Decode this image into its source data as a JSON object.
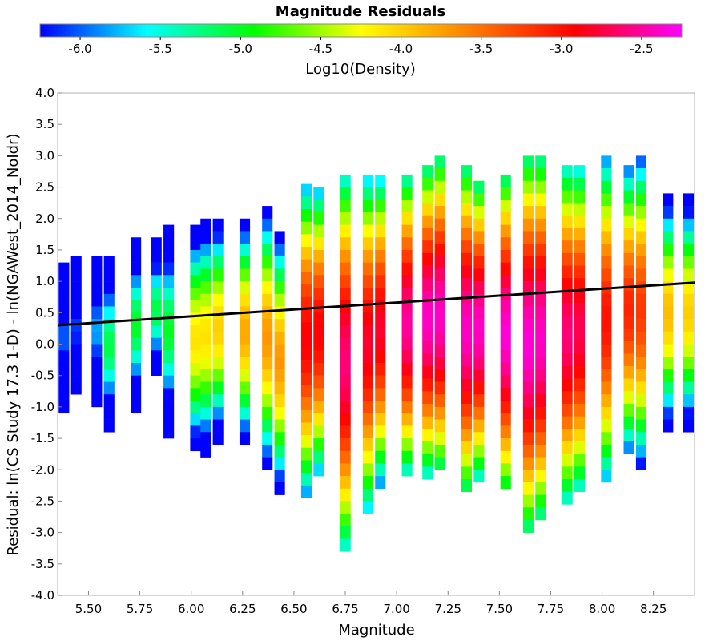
{
  "chart_data": {
    "type": "heatmap",
    "title": "Magnitude Residuals",
    "xlabel": "Magnitude",
    "ylabel": "Residual: ln(CS Study 17.3 1-D) - ln(NGAWest_2014_NoIdr)",
    "xlim": [
      5.35,
      8.45
    ],
    "ylim": [
      -4.0,
      4.0
    ],
    "x_ticks": [
      "5.50",
      "5.75",
      "6.00",
      "6.25",
      "6.50",
      "6.75",
      "7.00",
      "7.25",
      "7.50",
      "7.75",
      "8.00",
      "8.25"
    ],
    "y_ticks": [
      "-4.0",
      "-3.5",
      "-3.0",
      "-2.5",
      "-2.0",
      "-1.5",
      "-1.0",
      "-0.5",
      "0.0",
      "0.5",
      "1.0",
      "1.5",
      "2.0",
      "2.5",
      "3.0",
      "3.5",
      "4.0"
    ],
    "x_bin_width": 0.05,
    "y_bin_width": 0.2,
    "grid": false,
    "colorbar": {
      "label": "Log10(Density)",
      "range": [
        -6.25,
        -2.25
      ],
      "ticks": [
        "-6.0",
        "-5.5",
        "-5.0",
        "-4.5",
        "-4.0",
        "-3.5",
        "-3.0",
        "-2.5"
      ],
      "placement": "top",
      "colormap": [
        "#0000ff",
        "#00ffff",
        "#00ff00",
        "#ffff00",
        "#ff8000",
        "#ff0000",
        "#ff00ff"
      ]
    },
    "trend_line": {
      "x": [
        5.35,
        8.45
      ],
      "y": [
        0.3,
        0.98
      ],
      "color": "#000000"
    },
    "columns": [
      {
        "x": 5.38,
        "ymin": -1.1,
        "ymax": 1.3,
        "peak": -6.0
      },
      {
        "x": 5.44,
        "ymin": -0.9,
        "ymax": 1.4,
        "peak": -6.1
      },
      {
        "x": 5.54,
        "ymin": -0.95,
        "ymax": 1.4,
        "peak": -5.8
      },
      {
        "x": 5.6,
        "ymin": -1.45,
        "ymax": 1.4,
        "peak": -5.1
      },
      {
        "x": 5.73,
        "ymin": -1.1,
        "ymax": 1.7,
        "peak": -5.0
      },
      {
        "x": 5.83,
        "ymin": -0.6,
        "ymax": 1.7,
        "peak": -5.1
      },
      {
        "x": 5.89,
        "ymin": -1.45,
        "ymax": 1.9,
        "peak": -5.0
      },
      {
        "x": 6.02,
        "ymin": -1.75,
        "ymax": 1.9,
        "peak": -4.1
      },
      {
        "x": 6.07,
        "ymin": -1.75,
        "ymax": 2.0,
        "peak": -4.1
      },
      {
        "x": 6.13,
        "ymin": -1.5,
        "ymax": 2.0,
        "peak": -4.0
      },
      {
        "x": 6.26,
        "ymin": -1.6,
        "ymax": 2.0,
        "peak": -3.8
      },
      {
        "x": 6.37,
        "ymin": -2.0,
        "ymax": 2.2,
        "peak": -3.7
      },
      {
        "x": 6.43,
        "ymin": -2.35,
        "ymax": 1.8,
        "peak": -3.7
      },
      {
        "x": 6.56,
        "ymin": -2.4,
        "ymax": 2.55,
        "peak": -2.9
      },
      {
        "x": 6.62,
        "ymin": -2.1,
        "ymax": 2.5,
        "peak": -2.9
      },
      {
        "x": 6.75,
        "ymin": -3.3,
        "ymax": 2.7,
        "peak": -2.6
      },
      {
        "x": 6.86,
        "ymin": -2.7,
        "ymax": 2.7,
        "peak": -2.8
      },
      {
        "x": 6.92,
        "ymin": -2.2,
        "ymax": 2.7,
        "peak": -2.8
      },
      {
        "x": 7.05,
        "ymin": -2.05,
        "ymax": 2.7,
        "peak": -2.5
      },
      {
        "x": 7.15,
        "ymin": -2.05,
        "ymax": 2.85,
        "peak": -2.4
      },
      {
        "x": 7.21,
        "ymin": -2.05,
        "ymax": 3.0,
        "peak": -2.4
      },
      {
        "x": 7.34,
        "ymin": -2.4,
        "ymax": 2.85,
        "peak": -2.4
      },
      {
        "x": 7.4,
        "ymin": -2.1,
        "ymax": 2.6,
        "peak": -2.4
      },
      {
        "x": 7.53,
        "ymin": -2.4,
        "ymax": 2.7,
        "peak": -2.35
      },
      {
        "x": 7.64,
        "ymin": -3.0,
        "ymax": 3.0,
        "peak": -2.35
      },
      {
        "x": 7.7,
        "ymin": -2.8,
        "ymax": 3.0,
        "peak": -2.4
      },
      {
        "x": 7.83,
        "ymin": -2.55,
        "ymax": 2.85,
        "peak": -2.6
      },
      {
        "x": 7.89,
        "ymin": -2.4,
        "ymax": 2.85,
        "peak": -2.7
      },
      {
        "x": 8.02,
        "ymin": -2.25,
        "ymax": 3.0,
        "peak": -3.0
      },
      {
        "x": 8.13,
        "ymin": -1.75,
        "ymax": 2.85,
        "peak": -3.1
      },
      {
        "x": 8.19,
        "ymin": -1.9,
        "ymax": 3.0,
        "peak": -3.2
      },
      {
        "x": 8.32,
        "ymin": -1.4,
        "ymax": 2.4,
        "peak": -3.9
      },
      {
        "x": 8.42,
        "ymin": -1.4,
        "ymax": 2.4,
        "peak": -4.0
      }
    ]
  }
}
